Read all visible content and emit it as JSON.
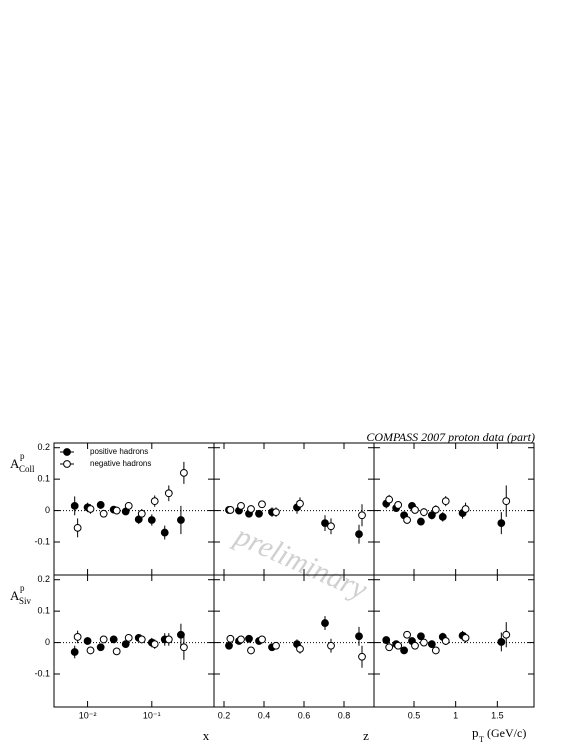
{
  "title": "COMPASS 2007 proton data (part)",
  "watermark": "preliminary",
  "chart_data": [
    {
      "type": "scatter",
      "xscale": "log",
      "xlim": [
        0.003,
        0.93
      ],
      "ylim": [
        -0.205,
        0.215
      ],
      "xticks": [
        0.01,
        0.1
      ],
      "yticks": [
        0.2,
        0.1,
        0,
        -0.1
      ],
      "zero_line": true,
      "legend": "upper left",
      "ylabel": {
        "text": "A",
        "sup": "p",
        "sub": "Coll"
      },
      "series": [
        {
          "name": "positive hadrons",
          "marker": "filled",
          "color": "#000000",
          "x": [
            0.0063,
            0.01,
            0.016,
            0.0255,
            0.0392,
            0.0626,
            0.1,
            0.159,
            0.284
          ],
          "values": [
            0.015,
            0.01,
            0.018,
            0.003,
            -0.003,
            -0.028,
            -0.03,
            -0.07,
            -0.03
          ],
          "errors": [
            0.03,
            0.015,
            0.012,
            0.01,
            0.01,
            0.015,
            0.018,
            0.022,
            0.045
          ]
        },
        {
          "name": "negative hadrons",
          "marker": "open",
          "color": "#000000",
          "x": [
            0.007,
            0.0111,
            0.0178,
            0.0284,
            0.0437,
            0.0698,
            0.111,
            0.184,
            0.316
          ],
          "values": [
            -0.055,
            0.005,
            -0.01,
            0.0,
            0.015,
            -0.01,
            0.03,
            0.055,
            0.12
          ],
          "errors": [
            0.03,
            0.015,
            0.012,
            0.01,
            0.012,
            0.015,
            0.018,
            0.025,
            0.035
          ]
        }
      ]
    },
    {
      "type": "scatter",
      "xscale": "linear",
      "xlim": [
        0.15,
        0.95
      ],
      "ylim": [
        -0.205,
        0.215
      ],
      "xticks": [
        0.2,
        0.4,
        0.6,
        0.8
      ],
      "yticks": [
        0.2,
        0.1,
        0,
        -0.1
      ],
      "zero_line": true,
      "series": [
        {
          "marker": "filled",
          "color": "#000000",
          "x": [
            0.225,
            0.275,
            0.325,
            0.375,
            0.44,
            0.565,
            0.705,
            0.875
          ],
          "values": [
            0.002,
            0.0,
            -0.01,
            -0.01,
            -0.005,
            0.01,
            -0.04,
            -0.075
          ],
          "errors": [
            0.01,
            0.01,
            0.012,
            0.012,
            0.015,
            0.02,
            0.025,
            0.03
          ]
        },
        {
          "marker": "open",
          "color": "#000000",
          "x": [
            0.232,
            0.285,
            0.335,
            0.39,
            0.46,
            0.58,
            0.735,
            0.89
          ],
          "values": [
            0.002,
            0.015,
            0.005,
            0.02,
            -0.005,
            0.022,
            -0.05,
            -0.015
          ],
          "errors": [
            0.01,
            0.01,
            0.012,
            0.012,
            0.015,
            0.02,
            0.025,
            0.035
          ]
        }
      ]
    },
    {
      "type": "scatter",
      "xscale": "linear",
      "xlim": [
        0.02,
        1.94
      ],
      "ylim": [
        -0.205,
        0.215
      ],
      "xticks": [
        0.5,
        1,
        1.5
      ],
      "yticks": [
        0.2,
        0.1,
        0,
        -0.1
      ],
      "zero_line": true,
      "series": [
        {
          "marker": "filled",
          "color": "#000000",
          "x": [
            0.167,
            0.286,
            0.381,
            0.476,
            0.583,
            0.714,
            0.845,
            1.083,
            1.548
          ],
          "values": [
            0.022,
            0.008,
            -0.015,
            0.015,
            -0.035,
            -0.015,
            -0.02,
            -0.008,
            -0.04
          ],
          "errors": [
            0.015,
            0.012,
            0.012,
            0.012,
            0.012,
            0.013,
            0.015,
            0.018,
            0.035
          ]
        },
        {
          "marker": "open",
          "color": "#000000",
          "x": [
            0.202,
            0.31,
            0.417,
            0.512,
            0.619,
            0.762,
            0.881,
            1.119,
            1.607
          ],
          "values": [
            0.035,
            0.018,
            -0.03,
            0.002,
            -0.005,
            0.003,
            0.03,
            0.005,
            0.03
          ],
          "errors": [
            0.015,
            0.012,
            0.012,
            0.012,
            0.013,
            0.014,
            0.016,
            0.02,
            0.05
          ]
        }
      ]
    },
    {
      "type": "scatter",
      "xscale": "log",
      "xlim": [
        0.003,
        0.93
      ],
      "ylim": [
        -0.205,
        0.215
      ],
      "xticks": [
        {
          "value": 0.01,
          "label": "10⁻²"
        },
        {
          "value": 0.1,
          "label": "10⁻¹"
        }
      ],
      "yticks": [
        0.2,
        0.1,
        0,
        -0.1
      ],
      "zero_line": true,
      "ylabel": {
        "text": "A",
        "sup": "p",
        "sub": "Siv"
      },
      "xlabel": {
        "text": "x"
      },
      "series": [
        {
          "marker": "filled",
          "color": "#000000",
          "x": [
            0.0063,
            0.01,
            0.016,
            0.0255,
            0.0392,
            0.0626,
            0.1,
            0.159,
            0.284
          ],
          "values": [
            -0.03,
            0.005,
            -0.015,
            0.01,
            -0.005,
            0.015,
            0.0,
            0.01,
            0.025
          ],
          "errors": [
            0.02,
            0.012,
            0.01,
            0.01,
            0.01,
            0.012,
            0.015,
            0.02,
            0.035
          ]
        },
        {
          "marker": "open",
          "color": "#000000",
          "x": [
            0.007,
            0.0111,
            0.0178,
            0.0284,
            0.0437,
            0.0698,
            0.111,
            0.184,
            0.316
          ],
          "values": [
            0.018,
            -0.025,
            0.01,
            -0.028,
            0.015,
            0.01,
            -0.005,
            0.01,
            -0.015
          ],
          "errors": [
            0.02,
            0.012,
            0.01,
            0.01,
            0.01,
            0.012,
            0.015,
            0.02,
            0.04
          ]
        }
      ]
    },
    {
      "type": "scatter",
      "xscale": "linear",
      "xlim": [
        0.15,
        0.95
      ],
      "ylim": [
        -0.205,
        0.215
      ],
      "xticks": [
        0.2,
        0.4,
        0.6,
        0.8
      ],
      "yticks": [
        0.2,
        0.1,
        0,
        -0.1
      ],
      "zero_line": true,
      "xlabel": {
        "text": "z"
      },
      "series": [
        {
          "marker": "filled",
          "color": "#000000",
          "x": [
            0.225,
            0.275,
            0.325,
            0.375,
            0.44,
            0.565,
            0.705,
            0.875
          ],
          "values": [
            -0.01,
            0.005,
            0.012,
            0.005,
            -0.015,
            -0.005,
            0.062,
            0.02
          ],
          "errors": [
            0.01,
            0.01,
            0.012,
            0.012,
            0.012,
            0.015,
            0.022,
            0.03
          ]
        },
        {
          "marker": "open",
          "color": "#000000",
          "x": [
            0.232,
            0.285,
            0.335,
            0.39,
            0.46,
            0.58,
            0.735,
            0.89
          ],
          "values": [
            0.012,
            0.01,
            -0.025,
            0.01,
            -0.01,
            -0.02,
            -0.01,
            -0.045
          ],
          "errors": [
            0.01,
            0.01,
            0.012,
            0.012,
            0.012,
            0.015,
            0.022,
            0.035
          ]
        }
      ]
    },
    {
      "type": "scatter",
      "xscale": "linear",
      "xlim": [
        0.02,
        1.94
      ],
      "ylim": [
        -0.205,
        0.215
      ],
      "xticks": [
        0.5,
        1,
        1.5
      ],
      "yticks": [
        0.2,
        0.1,
        0,
        -0.1
      ],
      "zero_line": true,
      "xlabel": {
        "text": "p",
        "sub": "T",
        "unit": "(GeV/c)"
      },
      "series": [
        {
          "marker": "filled",
          "color": "#000000",
          "x": [
            0.167,
            0.286,
            0.381,
            0.476,
            0.583,
            0.714,
            0.845,
            1.083,
            1.548
          ],
          "values": [
            0.008,
            -0.005,
            -0.025,
            0.005,
            0.02,
            -0.005,
            0.018,
            0.022,
            0.002
          ],
          "errors": [
            0.012,
            0.01,
            0.01,
            0.01,
            0.01,
            0.012,
            0.013,
            0.015,
            0.03
          ]
        },
        {
          "marker": "open",
          "color": "#000000",
          "x": [
            0.202,
            0.31,
            0.417,
            0.512,
            0.619,
            0.762,
            0.881,
            1.119,
            1.607
          ],
          "values": [
            -0.015,
            -0.01,
            0.025,
            -0.01,
            0.0,
            -0.025,
            0.005,
            0.015,
            0.025
          ],
          "errors": [
            0.012,
            0.01,
            0.01,
            0.01,
            0.01,
            0.012,
            0.013,
            0.016,
            0.04
          ]
        }
      ]
    }
  ]
}
